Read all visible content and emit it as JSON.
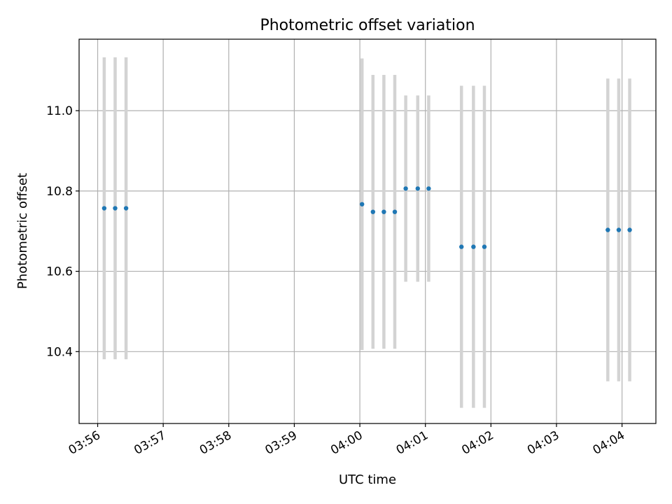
{
  "chart_data": {
    "type": "scatter",
    "title": "Photometric offset variation",
    "xlabel": "UTC time",
    "ylabel": "Photometric offset",
    "x_axis_kind": "time",
    "xlim": [
      "03:55:43",
      "04:04:31"
    ],
    "ylim": [
      10.221,
      11.178
    ],
    "grid": true,
    "legend": "none",
    "x_ticks": [
      "03:56",
      "03:57",
      "03:58",
      "03:59",
      "04:00",
      "04:01",
      "04:02",
      "04:03",
      "04:04"
    ],
    "y_ticks": [
      10.4,
      10.6,
      10.8,
      11.0
    ],
    "y_tick_labels": [
      "10.4",
      "10.6",
      "10.8",
      "11.0"
    ],
    "colors": {
      "points": "#1f77b4",
      "error_bars": "#d3d3d3",
      "grid": "#b0b0b0"
    },
    "series": [
      {
        "points": [
          {
            "x": "03:56:06",
            "y": 10.757,
            "err": 0.376
          },
          {
            "x": "03:56:16",
            "y": 10.757,
            "err": 0.376
          },
          {
            "x": "03:56:26",
            "y": 10.757,
            "err": 0.376
          },
          {
            "x": "04:00:02",
            "y": 10.767,
            "err": 0.363
          },
          {
            "x": "04:00:12",
            "y": 10.748,
            "err": 0.341
          },
          {
            "x": "04:00:22",
            "y": 10.748,
            "err": 0.341
          },
          {
            "x": "04:00:32",
            "y": 10.748,
            "err": 0.341
          },
          {
            "x": "04:00:42",
            "y": 10.806,
            "err": 0.232
          },
          {
            "x": "04:00:53",
            "y": 10.806,
            "err": 0.232
          },
          {
            "x": "04:01:03",
            "y": 10.806,
            "err": 0.232
          },
          {
            "x": "04:01:33",
            "y": 10.661,
            "err": 0.401
          },
          {
            "x": "04:01:44",
            "y": 10.661,
            "err": 0.401
          },
          {
            "x": "04:01:54",
            "y": 10.661,
            "err": 0.401
          },
          {
            "x": "04:03:47",
            "y": 10.703,
            "err": 0.377
          },
          {
            "x": "04:03:57",
            "y": 10.703,
            "err": 0.377
          },
          {
            "x": "04:04:07",
            "y": 10.703,
            "err": 0.377
          }
        ]
      }
    ]
  }
}
